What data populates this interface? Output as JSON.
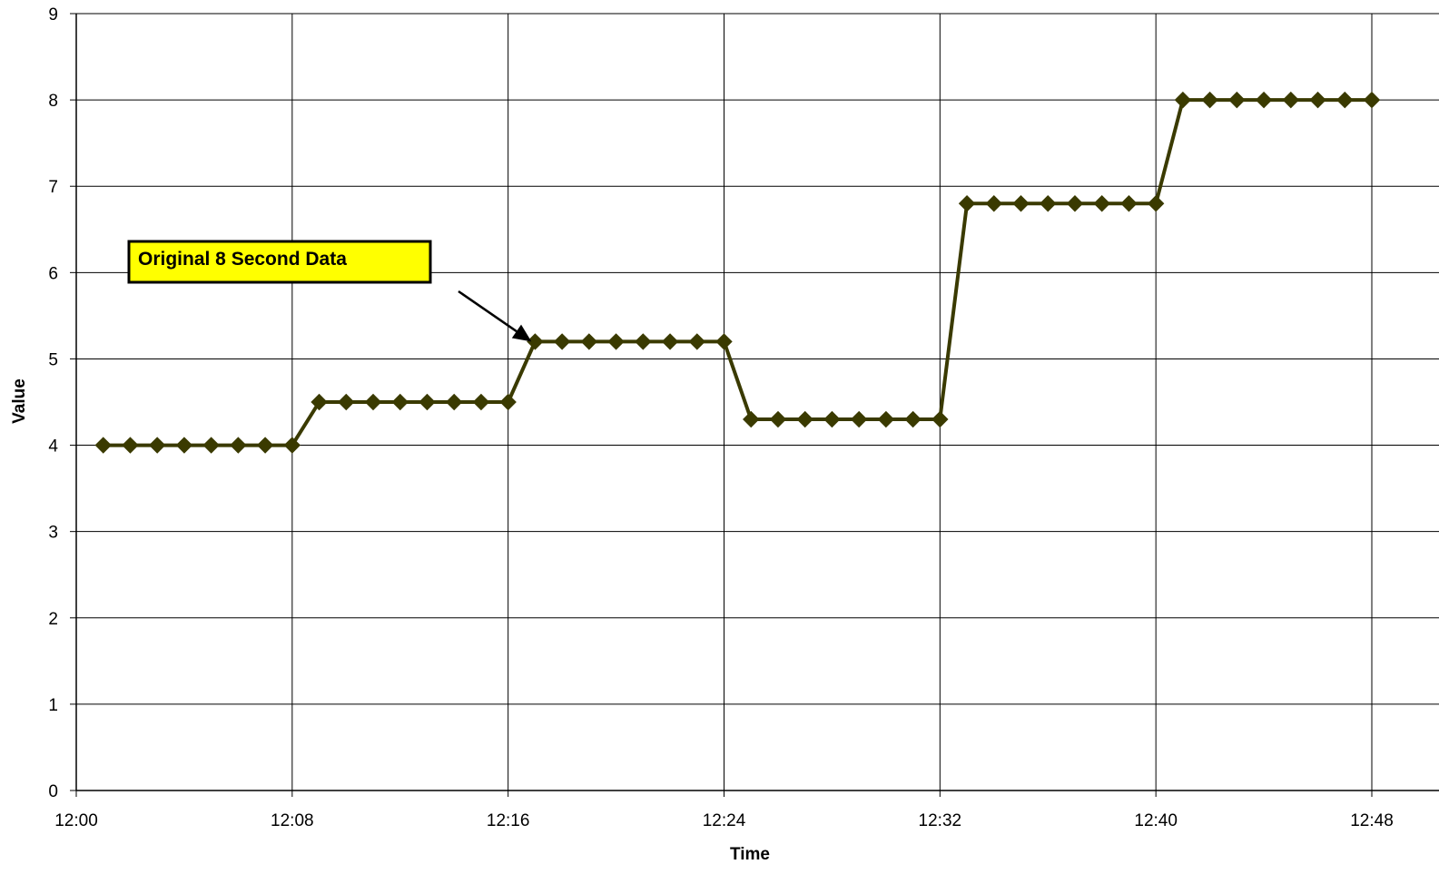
{
  "chart_data": {
    "type": "line",
    "title": "",
    "xlabel": "Time",
    "ylabel": "Value",
    "x_ticks": [
      "12:00",
      "12:08",
      "12:16",
      "12:24",
      "12:32",
      "12:40",
      "12:48"
    ],
    "y_ticks": [
      "0",
      "1",
      "2",
      "3",
      "4",
      "5",
      "6",
      "7",
      "8",
      "9"
    ],
    "xlim": [
      "12:00",
      "12:48"
    ],
    "ylim": [
      0,
      9
    ],
    "grid": true,
    "legend": "none",
    "series_color": "#3a3a00",
    "series": [
      {
        "x": [
          "12:01",
          "12:02",
          "12:03",
          "12:04",
          "12:05",
          "12:06",
          "12:07",
          "12:08",
          "12:09",
          "12:10",
          "12:11",
          "12:12",
          "12:13",
          "12:14",
          "12:15",
          "12:16",
          "12:17",
          "12:18",
          "12:19",
          "12:20",
          "12:21",
          "12:22",
          "12:23",
          "12:24",
          "12:25",
          "12:26",
          "12:27",
          "12:28",
          "12:29",
          "12:30",
          "12:31",
          "12:32",
          "12:33",
          "12:34",
          "12:35",
          "12:36",
          "12:37",
          "12:38",
          "12:39",
          "12:40",
          "12:41",
          "12:42",
          "12:43",
          "12:44",
          "12:45",
          "12:46",
          "12:47",
          "12:48"
        ],
        "values": [
          4,
          4,
          4,
          4,
          4,
          4,
          4,
          4,
          4.5,
          4.5,
          4.5,
          4.5,
          4.5,
          4.5,
          4.5,
          4.5,
          5.2,
          5.2,
          5.2,
          5.2,
          5.2,
          5.2,
          5.2,
          5.2,
          4.3,
          4.3,
          4.3,
          4.3,
          4.3,
          4.3,
          4.3,
          4.3,
          6.8,
          6.8,
          6.8,
          6.8,
          6.8,
          6.8,
          6.8,
          6.8,
          8,
          8,
          8,
          8,
          8,
          8,
          8,
          8
        ]
      }
    ],
    "annotation": {
      "text": "Original 8 Second Data",
      "background": "#ffff00",
      "points_to": {
        "x": "12:17",
        "value": 5.2
      }
    }
  }
}
